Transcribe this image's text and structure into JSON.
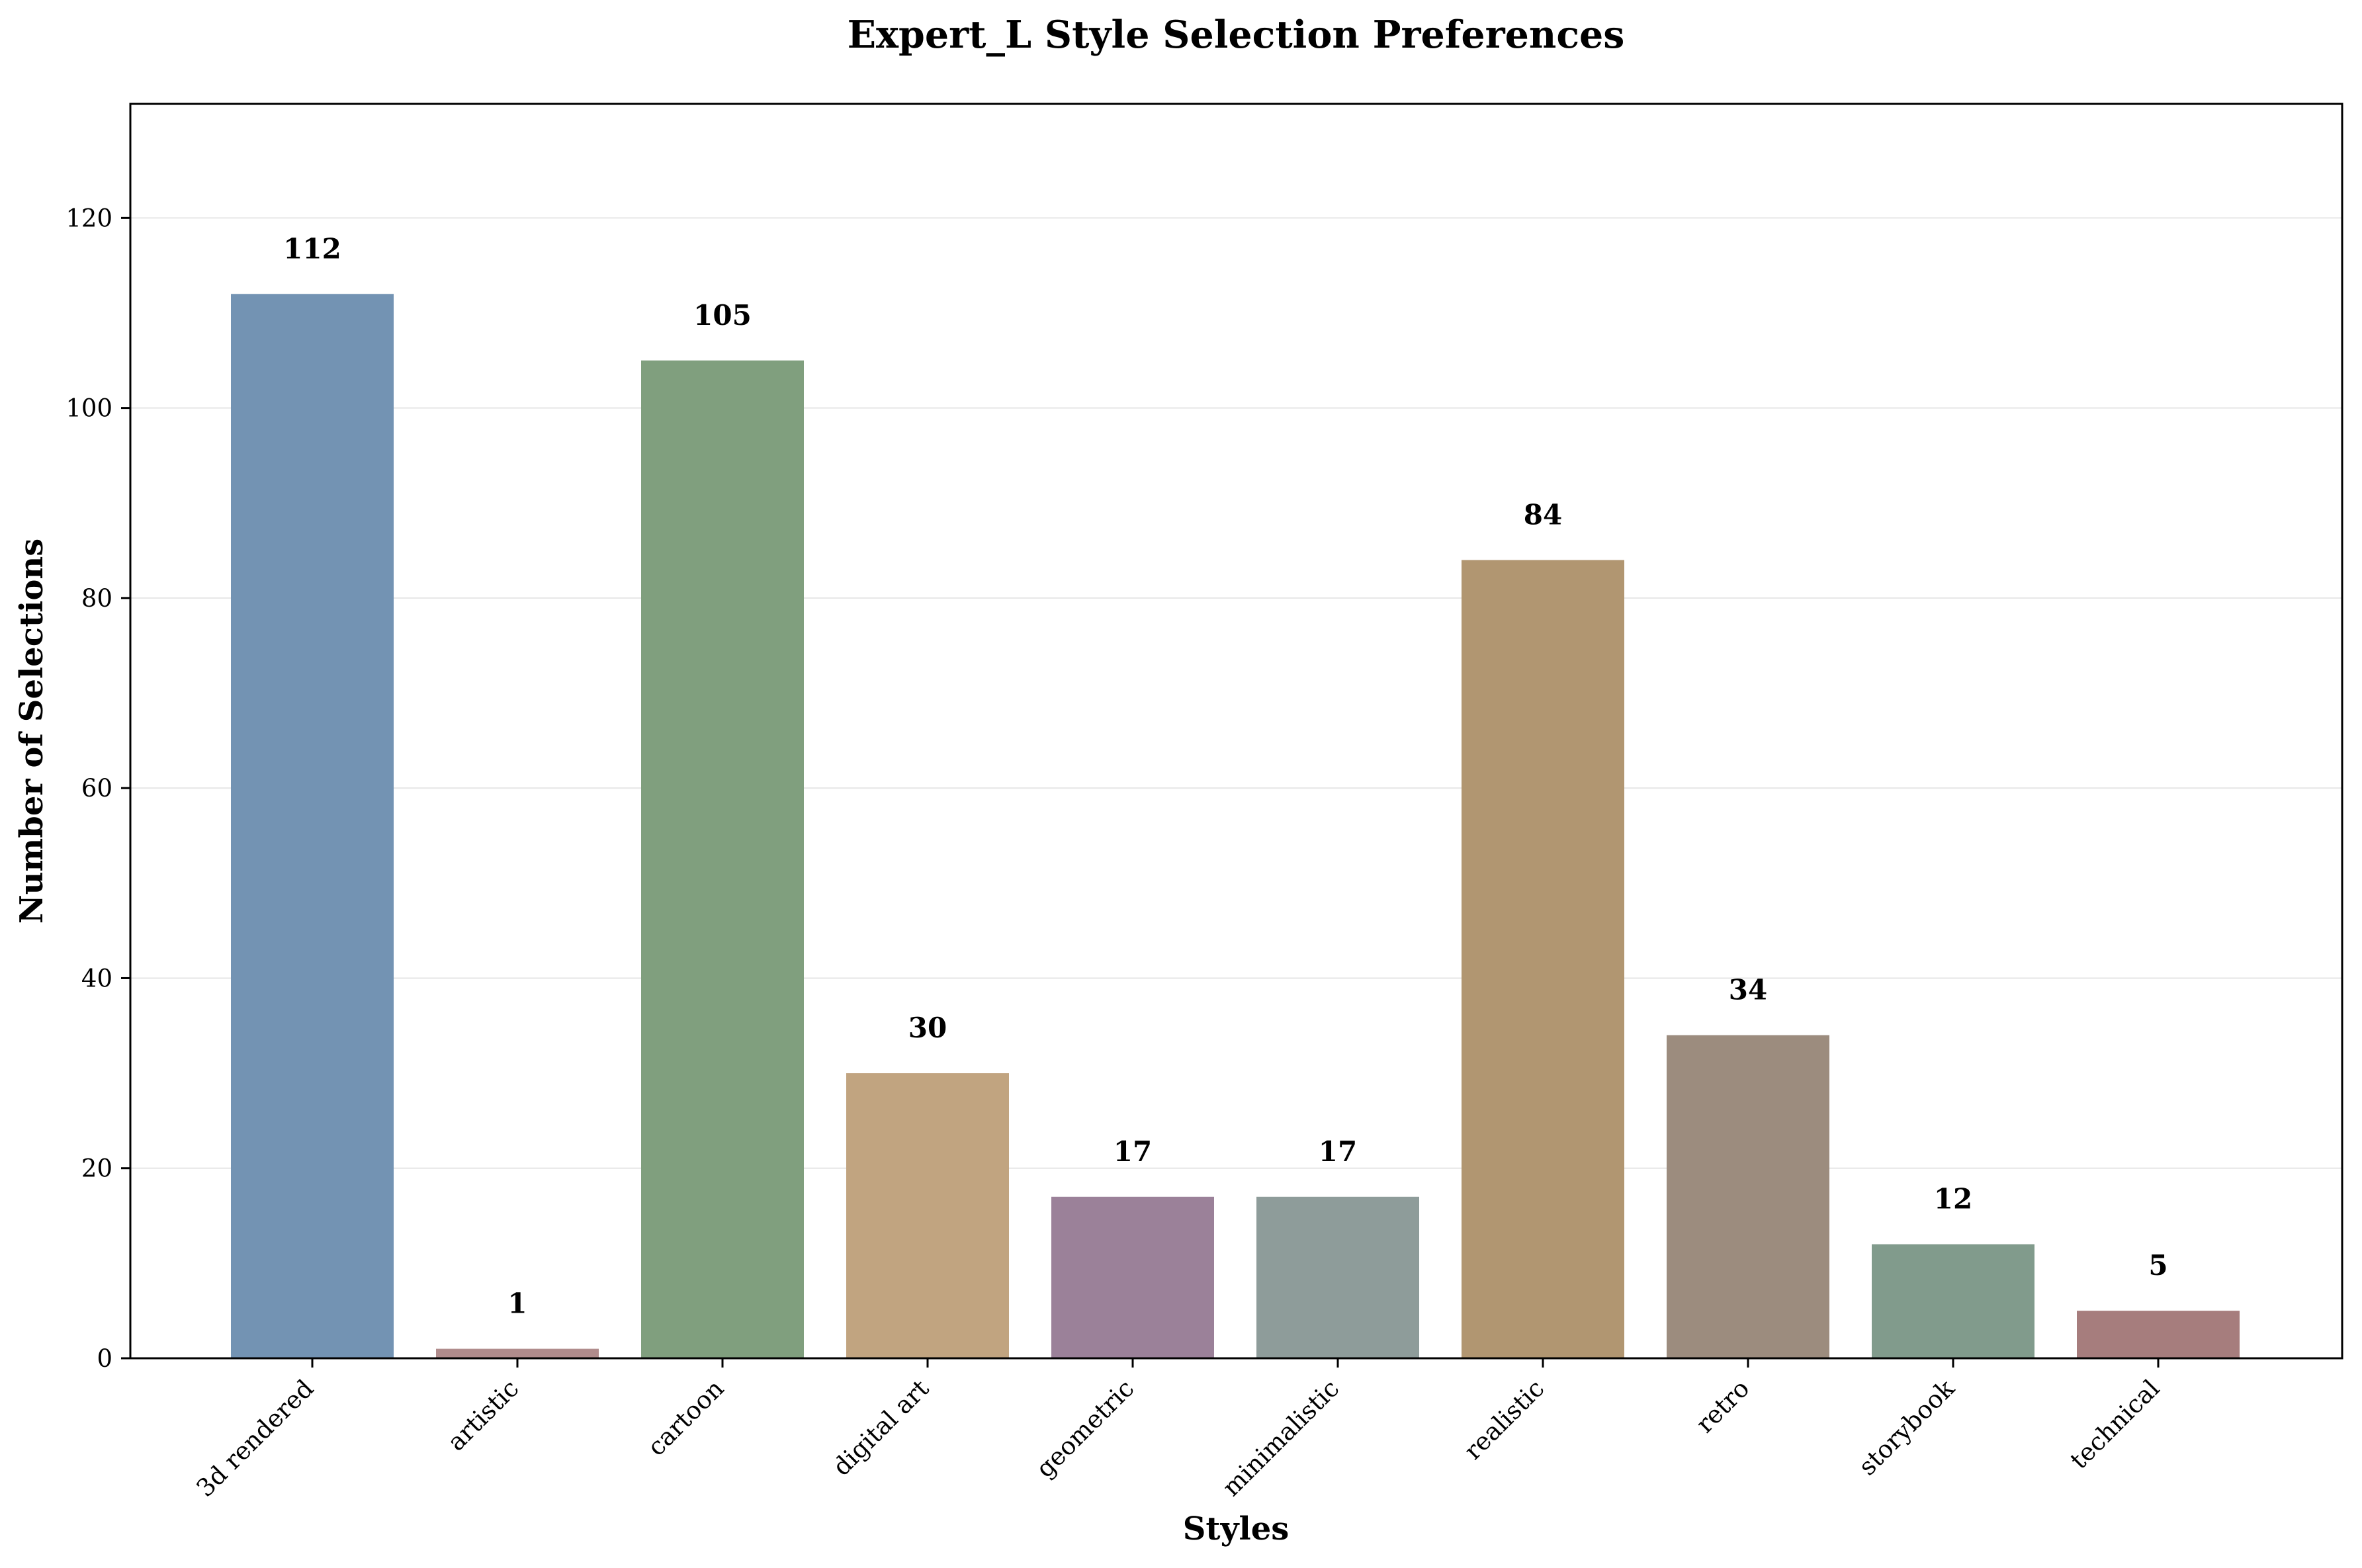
{
  "chart_data": {
    "type": "bar",
    "title": "Expert_L Style Selection Preferences",
    "xlabel": "Styles",
    "ylabel": "Number of Selections",
    "categories": [
      "3d rendered",
      "artistic",
      "cartoon",
      "digital art",
      "geometric",
      "minimalistic",
      "realistic",
      "retro",
      "storybook",
      "technical"
    ],
    "values": [
      112,
      1,
      105,
      30,
      17,
      17,
      84,
      34,
      12,
      5
    ],
    "colors": [
      "#7393b3",
      "#b08c8c",
      "#809f7e",
      "#c1a480",
      "#9b8199",
      "#8e9c9a",
      "#b19671",
      "#9c8c7e",
      "#819b8c",
      "#a67d7d"
    ],
    "yticks": [
      0,
      20,
      40,
      60,
      80,
      100,
      120
    ],
    "ylim": [
      0,
      132
    ],
    "grid": "y",
    "legend": "none"
  }
}
